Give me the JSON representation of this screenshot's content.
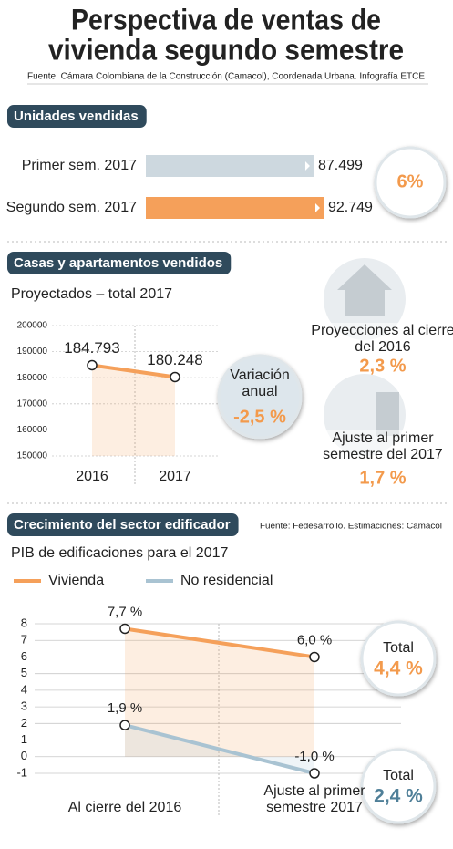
{
  "title": [
    "Perspectiva de ventas de",
    "vivienda segundo semestre"
  ],
  "source": "Fuente: Cámara Colombiana de la Construcción (Camacol), Coordenada Urbana. Infografía ETCE",
  "chart_data": [
    {
      "type": "bar",
      "orientation": "horizontal",
      "title": "Unidades vendidas",
      "categories": [
        "Primer sem. 2017",
        "Segundo sem.  2017"
      ],
      "values": [
        87499,
        92749
      ],
      "value_labels": [
        "87.499",
        "92.749"
      ],
      "colors": [
        "#cdd8df",
        "#f5a05a"
      ],
      "annotation": "6%"
    },
    {
      "type": "line",
      "title": "Casas y apartamentos vendidos",
      "subtitle": "Proyectados – total 2017",
      "categories": [
        "2016",
        "2017"
      ],
      "series": [
        {
          "color": "#f5a05a",
          "values": [
            184793,
            180248
          ],
          "value_labels": [
            "184.793",
            "180.248"
          ]
        }
      ],
      "ylim": [
        150000,
        200000
      ],
      "yticks": [
        150000,
        160000,
        170000,
        180000,
        190000,
        200000
      ],
      "grid": true,
      "annotation": {
        "label": "Variación anual",
        "value": "-2,5 %"
      },
      "side_notes": [
        {
          "label": "Proyecciones al cierre del 2016",
          "value": "2,3 %"
        },
        {
          "label": "Ajuste al primer semestre del 2017",
          "value": "1,7 %"
        }
      ]
    },
    {
      "type": "line",
      "title": "Crecimiento del sector edificador",
      "source": "Fuente: Fedesarrollo. Estimaciones: Camacol",
      "subtitle": "PIB de edificaciones para el 2017",
      "categories": [
        "Al cierre del 2016",
        "Ajuste al primer semestre 2017"
      ],
      "series": [
        {
          "name": "Vivienda",
          "color": "#f5a05a",
          "values": [
            7.7,
            6.0
          ],
          "value_labels": [
            "7,7 %",
            "6,0 %"
          ],
          "total": {
            "label": "Total",
            "value": "4,4 %"
          }
        },
        {
          "name": "No residencial",
          "color": "#a9c3d2",
          "values": [
            1.9,
            -1.0
          ],
          "value_labels": [
            "1,9 %",
            "-1,0 %"
          ],
          "total": {
            "label": "Total",
            "value": "2,4 %"
          }
        }
      ],
      "ylim": [
        -1,
        8
      ],
      "yticks": [
        -1,
        0,
        1,
        2,
        3,
        4,
        5,
        6,
        7,
        8
      ],
      "grid": true,
      "legend": "top-left"
    }
  ]
}
